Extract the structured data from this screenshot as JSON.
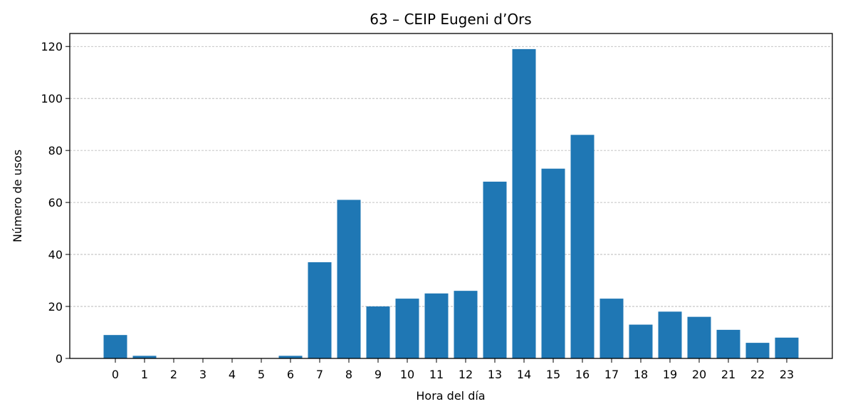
{
  "chart_data": {
    "type": "bar",
    "title": "63 – CEIP Eugeni d’Ors",
    "xlabel": "Hora del día",
    "ylabel": "Número de usos",
    "categories": [
      "0",
      "1",
      "2",
      "3",
      "4",
      "5",
      "6",
      "7",
      "8",
      "9",
      "10",
      "11",
      "12",
      "13",
      "14",
      "15",
      "16",
      "17",
      "18",
      "19",
      "20",
      "21",
      "22",
      "23"
    ],
    "values": [
      9,
      1,
      0,
      0,
      0,
      0,
      1,
      37,
      61,
      20,
      23,
      25,
      26,
      68,
      119,
      73,
      86,
      23,
      13,
      18,
      16,
      11,
      6,
      8
    ],
    "ylim": [
      0,
      125
    ],
    "yticks": [
      "0",
      "20",
      "40",
      "60",
      "80",
      "100",
      "120"
    ],
    "grid": "y-dashed",
    "bar_color": "#1f77b4"
  }
}
